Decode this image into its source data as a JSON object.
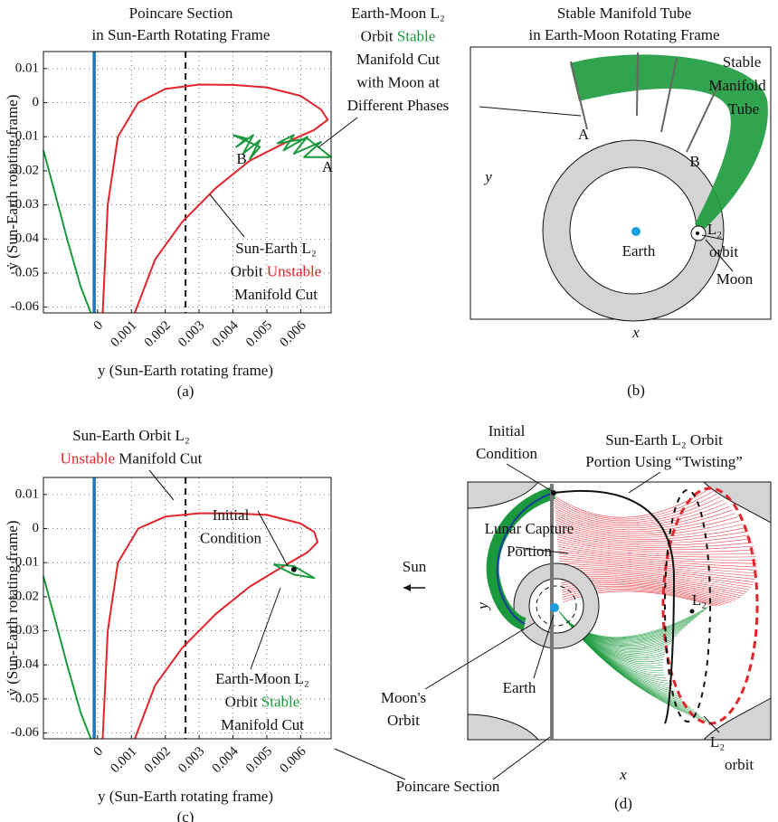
{
  "chart_data": [
    {
      "type": "line",
      "title": "Poincare Section",
      "subtitle": "in Sun-Earth Rotating Frame",
      "x_label": "y (Sun-Earth rotating frame)",
      "y_label": "ẏ (Sun-Earth rotating frame)",
      "panel_label": "(a)",
      "xlim": [
        -0.0016,
        0.0069
      ],
      "ylim": [
        -0.0617,
        0.015
      ],
      "xticks": [
        0,
        0.001,
        0.002,
        0.003,
        0.004,
        0.005,
        0.006
      ],
      "yticks": [
        0.01,
        0,
        -0.01,
        -0.02,
        -0.03,
        -0.04,
        -0.05,
        -0.06
      ],
      "grid": true,
      "reference_lines": [
        {
          "x": -0.0001,
          "color": "#1f77b4",
          "dashed": false
        },
        {
          "x": 0.0026,
          "color": "#111111",
          "dashed": true
        }
      ],
      "series": [
        {
          "color": "#e3242b",
          "x": [
            0.00015,
            0.0003,
            0.0006,
            0.0012,
            0.002,
            0.003,
            0.004,
            0.005,
            0.006,
            0.0066,
            0.0068,
            0.0064,
            0.0055,
            0.0045,
            0.0035,
            0.0025,
            0.0017,
            0.0011
          ],
          "values": [
            -0.0617,
            -0.03,
            -0.01,
            0,
            0.004,
            0.0053,
            0.0052,
            0.0045,
            0.002,
            -0.002,
            -0.005,
            -0.008,
            -0.012,
            -0.017,
            -0.025,
            -0.035,
            -0.046,
            -0.0617
          ]
        },
        {
          "color": "#1a9a3c",
          "x": [
            -0.0016,
            -0.0013,
            -0.0009,
            -0.0005,
            -0.0002
          ],
          "values": [
            -0.014,
            -0.025,
            -0.04,
            -0.054,
            -0.0617
          ]
        },
        {
          "color": "#1a9a3c",
          "x": [
            0.004,
            0.0044,
            0.0041,
            0.0046,
            0.0043,
            0.0048,
            0.0045,
            0.0048,
            0.004
          ],
          "values": [
            -0.0095,
            -0.0105,
            -0.013,
            -0.0095,
            -0.015,
            -0.011,
            -0.0165,
            -0.013,
            -0.0095
          ]
        },
        {
          "color": "#1a9a3c",
          "x": [
            0.0053,
            0.0058,
            0.0055,
            0.0062,
            0.0058,
            0.0066,
            0.0061,
            0.0069,
            0.0062,
            0.0053
          ],
          "values": [
            -0.012,
            -0.0095,
            -0.014,
            -0.01,
            -0.015,
            -0.0115,
            -0.016,
            -0.016,
            -0.0105,
            -0.012
          ]
        }
      ],
      "annotations": [
        {
          "lines": [
            [
              {
                "text": "Earth-Moon L₂"
              }
            ],
            [
              {
                "text": "Orbit "
              },
              {
                "text": "Stable",
                "color": "#1a9a3c"
              }
            ],
            [
              {
                "text": "Manifold Cut"
              }
            ],
            [
              {
                "text": "with Moon at"
              }
            ],
            [
              {
                "text": "Different Phases"
              }
            ]
          ]
        },
        {
          "lines": [
            [
              {
                "text": "A"
              }
            ]
          ]
        },
        {
          "lines": [
            [
              {
                "text": "B"
              }
            ]
          ]
        },
        {
          "lines": [
            [
              {
                "text": "Sun-Earth L₂"
              }
            ],
            [
              {
                "text": "Orbit "
              },
              {
                "text": "Unstable",
                "color": "#e3242b"
              }
            ],
            [
              {
                "text": "Manifold Cut"
              }
            ]
          ]
        }
      ]
    },
    {
      "type": "line",
      "x_label": "y (Sun-Earth rotating frame)",
      "y_label": "ẏ (Sun-Earth rotating frame)",
      "panel_label": "(c)",
      "xlim": [
        -0.0016,
        0.0069
      ],
      "ylim": [
        -0.0617,
        0.015
      ],
      "xticks": [
        0,
        0.001,
        0.002,
        0.003,
        0.004,
        0.005,
        0.006
      ],
      "yticks": [
        0.01,
        0,
        -0.01,
        -0.02,
        -0.03,
        -0.04,
        -0.05,
        -0.06
      ],
      "grid": true,
      "reference_lines": [
        {
          "x": -0.0001,
          "color": "#1f77b4",
          "dashed": false
        },
        {
          "x": 0.0026,
          "color": "#111111",
          "dashed": true
        }
      ],
      "series": [
        {
          "color": "#e3242b",
          "x": [
            0.00015,
            0.0003,
            0.0006,
            0.0012,
            0.002,
            0.003,
            0.004,
            0.005,
            0.006,
            0.0064,
            0.0065,
            0.0062,
            0.0055,
            0.0045,
            0.0035,
            0.0025,
            0.0017,
            0.0011
          ],
          "values": [
            -0.0617,
            -0.03,
            -0.01,
            0,
            0.0035,
            0.0045,
            0.0045,
            0.004,
            0.0015,
            -0.001,
            -0.004,
            -0.007,
            -0.011,
            -0.017,
            -0.025,
            -0.035,
            -0.046,
            -0.0617
          ]
        },
        {
          "color": "#1a9a3c",
          "x": [
            -0.0016,
            -0.0013,
            -0.0009,
            -0.0005,
            -0.0002
          ],
          "values": [
            -0.014,
            -0.025,
            -0.04,
            -0.054,
            -0.0617
          ]
        },
        {
          "color": "#1a9a3c",
          "x": [
            0.0052,
            0.0058,
            0.0064,
            0.0058,
            0.0052
          ],
          "values": [
            -0.0105,
            -0.011,
            -0.0145,
            -0.0135,
            -0.0105
          ]
        },
        {
          "color": "#111111",
          "marker": true,
          "x": [
            0.0058
          ],
          "values": [
            -0.012
          ]
        }
      ],
      "annotations": [
        {
          "lines": [
            [
              {
                "text": "Sun-Earth Orbit L₂"
              }
            ],
            [
              {
                "text": "Unstable",
                "color": "#e3242b"
              },
              {
                "text": " Manifold Cut"
              }
            ]
          ]
        },
        {
          "lines": [
            [
              {
                "text": "Initial"
              }
            ],
            [
              {
                "text": "Condition"
              }
            ]
          ]
        },
        {
          "lines": [
            [
              {
                "text": "Earth-Moon L₂"
              }
            ],
            [
              {
                "text": "Orbit "
              },
              {
                "text": "Stable",
                "color": "#1a9a3c"
              }
            ],
            [
              {
                "text": "Manifold Cut"
              }
            ]
          ]
        }
      ]
    }
  ],
  "diagrams": {
    "b": {
      "title": "Stable Manifold Tube",
      "subtitle": "in Earth-Moon Rotating Frame",
      "panel_label": "(b)",
      "labels": [
        "Stable",
        "Manifold",
        "Tube",
        "A",
        "B",
        "L₂",
        "orbit",
        "Earth",
        "Moon",
        "y",
        "x"
      ]
    },
    "d": {
      "panel_label": "(d)",
      "labels": [
        "Initial",
        "Condition",
        "Sun-Earth L₂ Orbit",
        "Portion Using “Twisting”",
        "Lunar Capture",
        "Portion",
        "Sun",
        "y",
        "L₂",
        "Moon's",
        "Orbit",
        "Earth",
        "L₂",
        "orbit",
        "x",
        "Poincare Section"
      ]
    }
  }
}
